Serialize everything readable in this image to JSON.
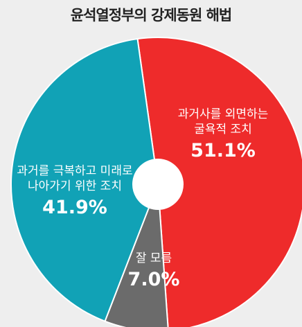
{
  "chart_data": {
    "type": "pie",
    "title": "윤석열정부의 강제동원 해법",
    "donut": true,
    "slices": [
      {
        "label_lines": [
          "과거사를 외면하는",
          "굴욕적 조치"
        ],
        "value": 51.1,
        "value_text": "51.1%",
        "color": "#ee2b2b"
      },
      {
        "label_lines": [
          "잘 모름"
        ],
        "value": 7.0,
        "value_text": "7.0%",
        "color": "#6b6b6b"
      },
      {
        "label_lines": [
          "과거를 극복하고 미래로",
          "나아가기 위한 조치"
        ],
        "value": 41.9,
        "value_text": "41.9%",
        "color": "#11a2b6"
      }
    ]
  }
}
